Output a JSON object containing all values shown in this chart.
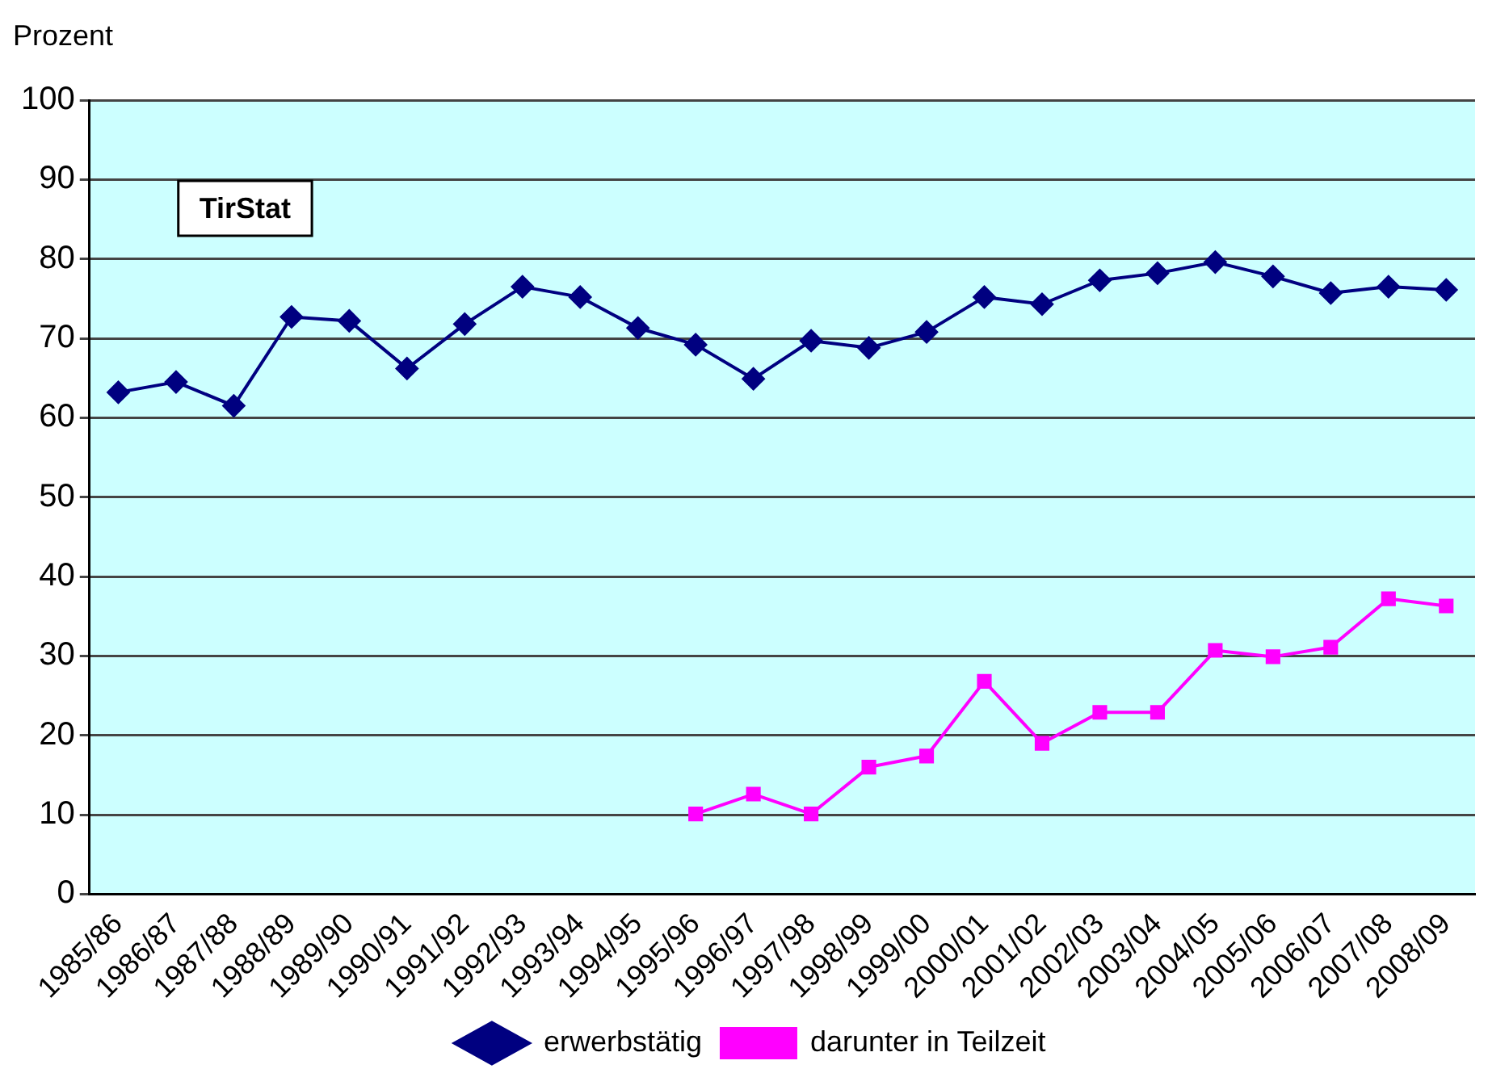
{
  "chart_data": {
    "type": "line",
    "ylabel": "Prozent",
    "categories": [
      "1985/86",
      "1986/87",
      "1987/88",
      "1988/89",
      "1989/90",
      "1990/91",
      "1991/92",
      "1992/93",
      "1993/94",
      "1994/95",
      "1995/96",
      "1996/97",
      "1997/98",
      "1998/99",
      "1999/00",
      "2000/01",
      "2001/02",
      "2002/03",
      "2003/04",
      "2004/05",
      "2005/06",
      "2006/07",
      "2007/08",
      "2008/09"
    ],
    "series": [
      {
        "name": "erwerbstätig",
        "color": "#000080",
        "marker": "diamond",
        "values": [
          63.2,
          64.5,
          61.5,
          72.7,
          72.2,
          66.2,
          71.8,
          76.5,
          75.2,
          71.3,
          69.2,
          64.9,
          69.7,
          68.8,
          70.8,
          75.2,
          74.3,
          77.3,
          78.2,
          79.6,
          77.8,
          75.7,
          76.5,
          76.1
        ]
      },
      {
        "name": "darunter in Teilzeit",
        "color": "#ff00ff",
        "marker": "square",
        "values": [
          null,
          null,
          null,
          null,
          null,
          null,
          null,
          null,
          null,
          null,
          10.1,
          12.6,
          10.1,
          16,
          17.4,
          26.8,
          19,
          22.9,
          22.9,
          30.7,
          29.9,
          31.1,
          37.2,
          36.3
        ]
      }
    ],
    "ylim": [
      0,
      100
    ],
    "yticks": [
      0,
      10,
      20,
      30,
      40,
      50,
      60,
      70,
      80,
      90,
      100
    ],
    "grid": "y",
    "legend": "bottom",
    "annotations": [
      "TirStat"
    ]
  }
}
